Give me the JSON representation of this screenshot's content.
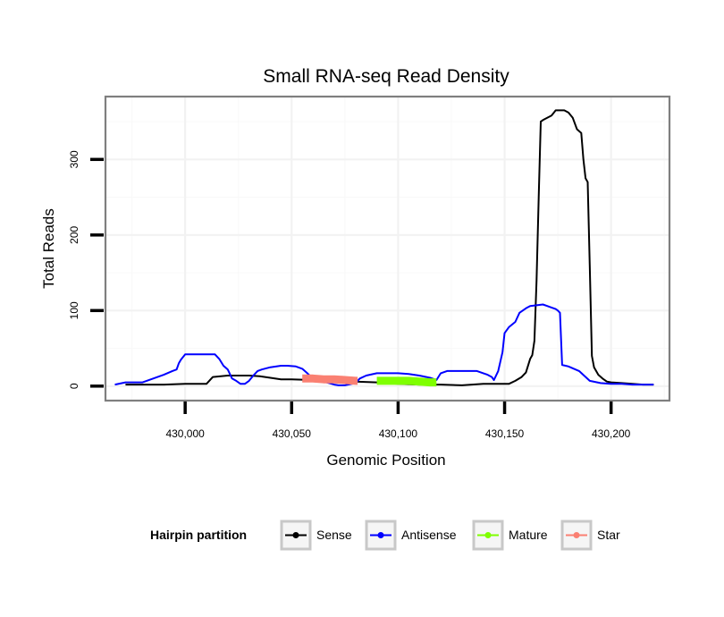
{
  "chart_data": {
    "type": "line",
    "title": "Small RNA-seq Read Density",
    "xlabel": "Genomic Position",
    "ylabel": "Total Reads",
    "xlim": [
      429963,
      430227
    ],
    "ylim": [
      -18,
      382
    ],
    "x_ticks": [
      430000,
      430050,
      430100,
      430150,
      430200
    ],
    "x_tick_labels": [
      "430,000",
      "430,050",
      "430,100",
      "430,150",
      "430,200"
    ],
    "y_ticks": [
      0,
      100,
      200,
      300
    ],
    "y_tick_labels": [
      "0",
      "100",
      "200",
      "300"
    ],
    "grid": true,
    "legend": {
      "title": "Hairpin partition",
      "placement": "bottom",
      "entries": [
        "Sense",
        "Antisense",
        "Mature",
        "Star"
      ]
    },
    "series": [
      {
        "name": "Sense",
        "color": "#000000",
        "width": 2,
        "x": [
          429972,
          429980,
          429990,
          430000,
          430008,
          430010,
          430013,
          430020,
          430030,
          430035,
          430040,
          430045,
          430050,
          430060,
          430070,
          430080,
          430090,
          430100,
          430110,
          430120,
          430130,
          430140,
          430148,
          430150,
          430152,
          430155,
          430158,
          430160,
          430162,
          430163,
          430164,
          430165,
          430166,
          430167,
          430168,
          430170,
          430172,
          430174,
          430176,
          430178,
          430180,
          430182,
          430184,
          430186,
          430187,
          430188,
          430189,
          430190,
          430191,
          430192,
          430194,
          430196,
          430198,
          430200,
          430205,
          430210,
          430215,
          430220
        ],
        "y": [
          2,
          2,
          2,
          3,
          3,
          3,
          12,
          14,
          14,
          13,
          11,
          9,
          9,
          8,
          8,
          6,
          5,
          3,
          2,
          2,
          1,
          3,
          3,
          3,
          3,
          7,
          12,
          18,
          36,
          41,
          60,
          140,
          250,
          350,
          352,
          355,
          358,
          365,
          365,
          365,
          362,
          355,
          340,
          335,
          300,
          275,
          270,
          160,
          40,
          25,
          15,
          10,
          6,
          5,
          4,
          3,
          2,
          2
        ]
      },
      {
        "name": "Antisense",
        "color": "#0000ff",
        "width": 2,
        "x": [
          429967,
          429972,
          429980,
          429985,
          429990,
          429994,
          429996,
          429997,
          429998,
          430000,
          430005,
          430010,
          430012,
          430014,
          430016,
          430018,
          430020,
          430022,
          430024,
          430026,
          430028,
          430030,
          430032,
          430034,
          430036,
          430040,
          430045,
          430048,
          430052,
          430055,
          430057,
          430060,
          430065,
          430070,
          430072,
          430075,
          430080,
          430082,
          430085,
          430090,
          430095,
          430100,
          430105,
          430110,
          430115,
          430118,
          430120,
          430123,
          430128,
          430133,
          430137,
          430140,
          430142,
          430144,
          430145,
          430147,
          430149,
          430150,
          430152,
          430155,
          430157,
          430160,
          430162,
          430165,
          430168,
          430170,
          430172,
          430174,
          430175,
          430176,
          430177,
          430180,
          430185,
          430190,
          430195,
          430200,
          430205,
          430210,
          430215,
          430220
        ],
        "y": [
          2,
          5,
          5,
          10,
          15,
          20,
          22,
          30,
          35,
          42,
          42,
          42,
          42,
          42,
          36,
          27,
          22,
          10,
          7,
          3,
          3,
          7,
          14,
          20,
          22,
          25,
          27,
          27,
          26,
          23,
          18,
          10,
          6,
          2,
          1,
          1,
          4,
          10,
          14,
          17,
          17,
          17,
          16,
          14,
          11,
          8,
          17,
          20,
          20,
          20,
          20,
          17,
          15,
          12,
          8,
          20,
          45,
          70,
          78,
          85,
          97,
          103,
          106,
          107,
          108,
          106,
          104,
          102,
          100,
          97,
          28,
          26,
          20,
          7,
          4,
          3,
          3,
          2,
          2,
          2
        ]
      },
      {
        "name": "Mature",
        "color": "#7fff00",
        "width": 9,
        "x": [
          430090,
          430095,
          430100,
          430105,
          430110,
          430115,
          430118
        ],
        "y": [
          7,
          7,
          7,
          7,
          6,
          5,
          5
        ]
      },
      {
        "name": "Star",
        "color": "#fa8072",
        "width": 9,
        "x": [
          430055,
          430060,
          430065,
          430070,
          430075,
          430080,
          430081
        ],
        "y": [
          10,
          10,
          9,
          9,
          8,
          7,
          7
        ]
      }
    ]
  }
}
